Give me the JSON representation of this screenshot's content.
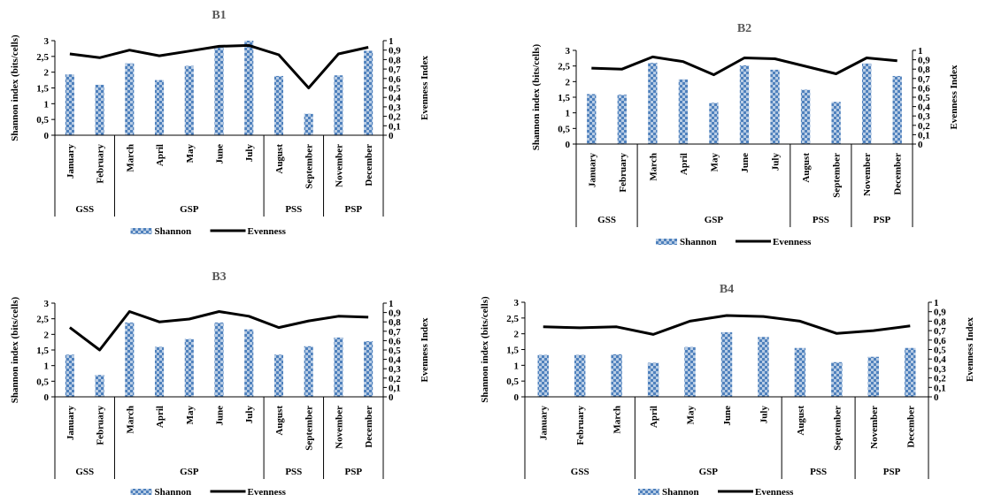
{
  "colors": {
    "bar_light": "#b8cce4",
    "bar_dark": "#4f81bd",
    "line": "#000000",
    "axis": "#000000",
    "title": "#595959"
  },
  "legend": {
    "bar_label": "Shannon",
    "line_label": "Evenness"
  },
  "chart_data": [
    {
      "type": "bar+line",
      "title": "B1",
      "ylabel": "Shannon index (bits/cells)",
      "y2label": "Evenness Index",
      "ylim": [
        0,
        3
      ],
      "y2lim": [
        0,
        1
      ],
      "yticks": [
        "0",
        "0,5",
        "1",
        "1,5",
        "2",
        "2,5",
        "3"
      ],
      "y2ticks": [
        "0",
        "0,1",
        "0,2",
        "0,3",
        "0,4",
        "0,5",
        "0,6",
        "0,7",
        "0,8",
        "0,9",
        "1"
      ],
      "categories": [
        "January",
        "February",
        "March",
        "April",
        "May",
        "June",
        "July",
        "August",
        "September",
        "November",
        "December"
      ],
      "groups": [
        {
          "label": "GSS",
          "span": 2
        },
        {
          "label": "GSP",
          "span": 5
        },
        {
          "label": "PSS",
          "span": 2
        },
        {
          "label": "PSP",
          "span": 2
        }
      ],
      "series": [
        {
          "name": "Shannon",
          "kind": "bar",
          "values": [
            1.93,
            1.6,
            2.28,
            1.75,
            2.2,
            2.8,
            3.0,
            1.88,
            0.68,
            1.9,
            2.68
          ]
        },
        {
          "name": "Evenness",
          "kind": "line",
          "axis": "right",
          "values": [
            0.86,
            0.82,
            0.9,
            0.84,
            0.89,
            0.94,
            0.95,
            0.85,
            0.5,
            0.86,
            0.93
          ]
        }
      ]
    },
    {
      "type": "bar+line",
      "title": "B2",
      "ylabel": "Shannon index (bits/cells)",
      "y2label": "Evenness Index",
      "ylim": [
        0,
        3
      ],
      "y2lim": [
        0,
        1
      ],
      "yticks": [
        "0",
        "0,5",
        "1",
        "1,5",
        "2",
        "2,5",
        "3"
      ],
      "y2ticks": [
        "0",
        "0,1",
        "0,2",
        "0,3",
        "0,4",
        "0,5",
        "0,6",
        "0,7",
        "0,8",
        "0,9",
        "1"
      ],
      "categories": [
        "January",
        "February",
        "March",
        "April",
        "May",
        "June",
        "July",
        "August",
        "September",
        "November",
        "December"
      ],
      "groups": [
        {
          "label": "GSS",
          "span": 2
        },
        {
          "label": "GSP",
          "span": 5
        },
        {
          "label": "PSS",
          "span": 2
        },
        {
          "label": "PSP",
          "span": 2
        }
      ],
      "series": [
        {
          "name": "Shannon",
          "kind": "bar",
          "values": [
            1.6,
            1.58,
            2.6,
            2.07,
            1.32,
            2.52,
            2.38,
            1.74,
            1.35,
            2.58,
            2.18
          ]
        },
        {
          "name": "Evenness",
          "kind": "line",
          "axis": "right",
          "values": [
            0.81,
            0.8,
            0.93,
            0.88,
            0.74,
            0.92,
            0.91,
            0.83,
            0.75,
            0.92,
            0.89
          ]
        }
      ]
    },
    {
      "type": "bar+line",
      "title": "B3",
      "ylabel": "Shannon index (bits/cells)",
      "y2label": "Evenness Index",
      "ylim": [
        0,
        3
      ],
      "y2lim": [
        0,
        1
      ],
      "yticks": [
        "0",
        "0,5",
        "1",
        "1,5",
        "2",
        "2,5",
        "3"
      ],
      "y2ticks": [
        "0",
        "0,1",
        "0,2",
        "0,3",
        "0,4",
        "0,5",
        "0,6",
        "0,7",
        "0,8",
        "0,9",
        "1"
      ],
      "categories": [
        "January",
        "February",
        "March",
        "April",
        "May",
        "June",
        "July",
        "August",
        "September",
        "November",
        "December"
      ],
      "groups": [
        {
          "label": "GSS",
          "span": 2
        },
        {
          "label": "GSP",
          "span": 5
        },
        {
          "label": "PSS",
          "span": 2
        },
        {
          "label": "PSP",
          "span": 2
        }
      ],
      "series": [
        {
          "name": "Shannon",
          "kind": "bar",
          "values": [
            1.35,
            0.7,
            2.38,
            1.6,
            1.85,
            2.38,
            2.16,
            1.35,
            1.62,
            1.9,
            1.78
          ]
        },
        {
          "name": "Evenness",
          "kind": "line",
          "axis": "right",
          "values": [
            0.74,
            0.5,
            0.91,
            0.8,
            0.83,
            0.91,
            0.86,
            0.74,
            0.81,
            0.86,
            0.85
          ]
        }
      ]
    },
    {
      "type": "bar+line",
      "title": "B4",
      "ylabel": "Shannon index (bits/cells)",
      "y2label": "Evenness Index",
      "ylim": [
        0,
        3
      ],
      "y2lim": [
        0,
        1
      ],
      "yticks": [
        "0",
        "0,5",
        "1",
        "1,5",
        "2",
        "2,5",
        "3"
      ],
      "y2ticks": [
        "0",
        "0,1",
        "0,2",
        "0,3",
        "0,4",
        "0,5",
        "0,6",
        "0,7",
        "0,8",
        "0,9",
        "1"
      ],
      "categories": [
        "January",
        "February",
        "March",
        "April",
        "May",
        "June",
        "July",
        "August",
        "September",
        "November",
        "December"
      ],
      "groups": [
        {
          "label": "GSS",
          "span": 3
        },
        {
          "label": "GSP",
          "span": 4
        },
        {
          "label": "PSS",
          "span": 2
        },
        {
          "label": "PSP",
          "span": 2
        }
      ],
      "series": [
        {
          "name": "Shannon",
          "kind": "bar",
          "values": [
            1.33,
            1.33,
            1.35,
            1.08,
            1.58,
            2.05,
            1.9,
            1.55,
            1.1,
            1.27,
            1.55
          ]
        },
        {
          "name": "Evenness",
          "kind": "line",
          "axis": "right",
          "values": [
            0.74,
            0.73,
            0.74,
            0.66,
            0.8,
            0.86,
            0.85,
            0.8,
            0.67,
            0.7,
            0.75
          ]
        }
      ]
    }
  ]
}
